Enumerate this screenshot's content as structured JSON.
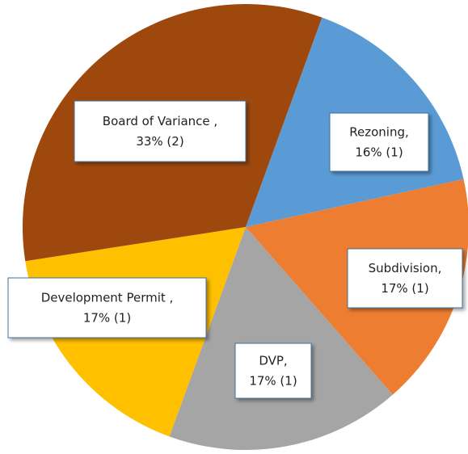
{
  "chart_data": {
    "type": "pie",
    "categories": [
      "Rezoning,",
      "Subdivision,",
      "DVP,",
      "Development Permit ,",
      "Board of Variance ,"
    ],
    "values": [
      16,
      17,
      17,
      17,
      33
    ],
    "value_labels": [
      "16% (1)",
      "17% (1)",
      "17% (1)",
      "17% (1)",
      "33% (2)"
    ],
    "colors": [
      "#5b9bd5",
      "#ed7d31",
      "#a5a5a5",
      "#ffc000",
      "#9e480e"
    ],
    "start_angle": 20
  }
}
